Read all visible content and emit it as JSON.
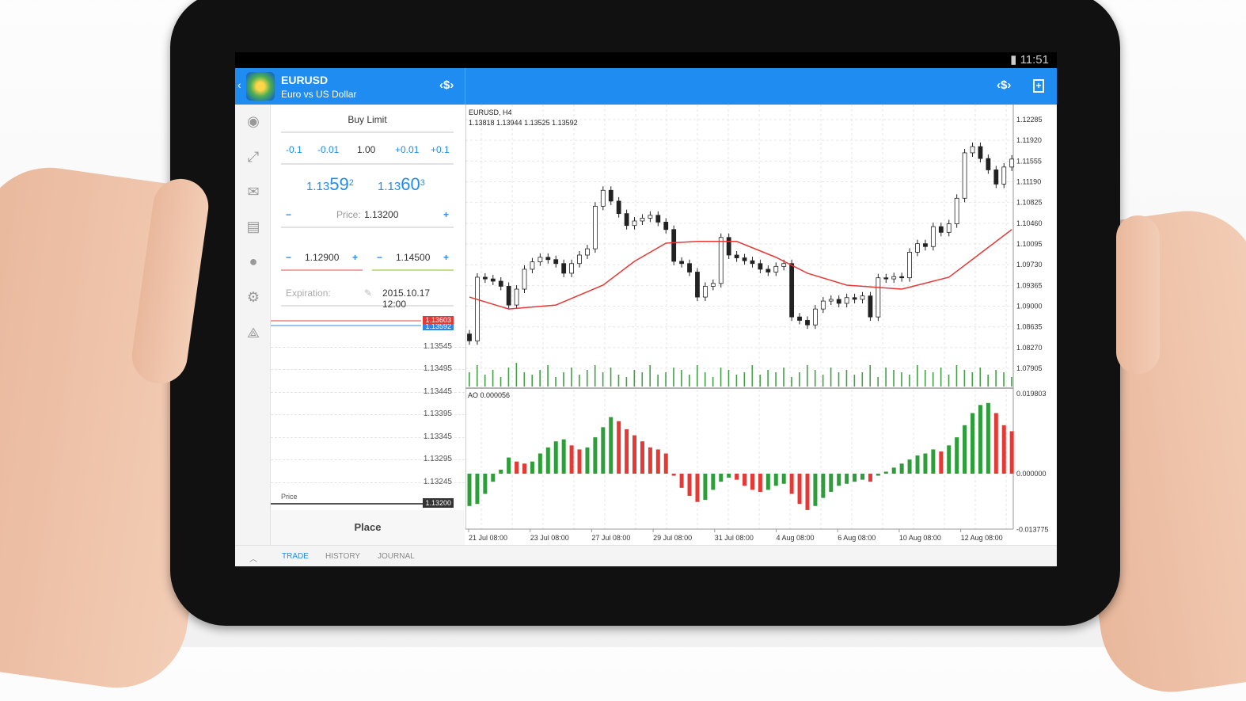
{
  "status_bar": {
    "time": "11:51",
    "battery_icon": "battery-icon"
  },
  "header": {
    "symbol": "EURUSD",
    "description": "Euro vs US Dollar",
    "back_icon": "chevron-left-icon",
    "accent": "#1e8cf0"
  },
  "sidebar": {
    "items": [
      "account-icon",
      "trade-icon",
      "mail-icon",
      "news-icon",
      "chat-icon",
      "settings-icon",
      "community-icon"
    ]
  },
  "order": {
    "type": "Buy Limit",
    "volume": {
      "steps": [
        "-0.1",
        "-0.01",
        "+0.01",
        "+0.1"
      ],
      "value": "1.00"
    },
    "bid": {
      "prefix": "1.13",
      "big": "59",
      "sup": "2"
    },
    "ask": {
      "prefix": "1.13",
      "big": "60",
      "sup": "3"
    },
    "price_label": "Price:",
    "price": "1.13200",
    "stop_loss": "1.12900",
    "take_profit": "1.14500",
    "expiration_label": "Expiration:",
    "expiration": "2015.10.17 12:00",
    "ladder": {
      "ask_tag": "1.13603",
      "bid_tag": "1.13592",
      "levels": [
        "1.13545",
        "1.13495",
        "1.13445",
        "1.13395",
        "1.13345",
        "1.13295",
        "1.13245"
      ],
      "price_label": "Price",
      "price_tag": "1.13200"
    },
    "place_label": "Place"
  },
  "tabs": [
    "TRADE",
    "HISTORY",
    "JOURNAL"
  ],
  "chart_data": [
    {
      "type": "candlestick",
      "title": "EURUSD, H4",
      "ohlc_readout": "1.13818 1.13944 1.13525 1.13592",
      "y_ticks": [
        "1.12285",
        "1.11920",
        "1.11555",
        "1.11190",
        "1.10825",
        "1.10460",
        "1.10095",
        "1.09730",
        "1.09365",
        "1.09000",
        "1.08635",
        "1.08270",
        "1.07905"
      ],
      "x_ticks": [
        "21 Jul 08:00",
        "23 Jul 08:00",
        "27 Jul 08:00",
        "29 Jul 08:00",
        "31 Jul 08:00",
        "4 Aug 08:00",
        "6 Aug 08:00",
        "10 Aug 08:00",
        "12 Aug 08:00"
      ],
      "ylim": [
        1.0775,
        1.1245
      ],
      "grid": true,
      "closes": [
        1.0839,
        1.0951,
        1.0948,
        1.0944,
        1.0935,
        1.0902,
        1.093,
        1.0965,
        1.0978,
        1.0986,
        1.0982,
        1.0975,
        1.0958,
        1.0975,
        1.099,
        1.1001,
        1.1076,
        1.1104,
        1.1085,
        1.1063,
        1.1042,
        1.105,
        1.1055,
        1.106,
        1.1048,
        1.1035,
        1.0979,
        1.0975,
        1.096,
        1.0916,
        1.0935,
        1.094,
        1.1021,
        1.099,
        1.0985,
        1.098,
        1.0975,
        1.0965,
        1.096,
        1.097,
        1.0975,
        1.0881,
        1.0875,
        1.0867,
        1.0895,
        1.0909,
        1.0912,
        1.0905,
        1.0915,
        1.0912,
        1.0918,
        1.0881,
        1.095,
        1.0948,
        1.0952,
        1.095,
        1.0995,
        1.101,
        1.1005,
        1.104,
        1.103,
        1.1045,
        1.109,
        1.117,
        1.1181,
        1.116,
        1.114,
        1.1115,
        1.1145,
        1.1159
      ],
      "moving_average": {
        "color": "#e53935",
        "points": [
          [
            0,
            1.0916
          ],
          [
            5,
            1.0895
          ],
          [
            11,
            1.0902
          ],
          [
            17,
            1.0937
          ],
          [
            21,
            1.0979
          ],
          [
            25,
            1.1011
          ],
          [
            29,
            1.1014
          ],
          [
            34,
            1.1014
          ],
          [
            39,
            1.0986
          ],
          [
            43,
            1.0958
          ],
          [
            48,
            1.0937
          ],
          [
            55,
            1.093
          ],
          [
            61,
            1.0951
          ],
          [
            65,
            1.0993
          ],
          [
            69,
            1.1035
          ]
        ]
      },
      "volume": [
        6,
        9,
        5,
        7,
        4,
        8,
        10,
        6,
        5,
        7,
        9,
        4,
        6,
        8,
        5,
        7,
        9,
        6,
        8,
        5,
        4,
        7,
        6,
        9,
        5,
        6,
        8,
        7,
        5,
        9,
        6,
        4,
        8,
        7,
        5,
        6,
        9,
        5,
        7,
        6,
        8,
        4,
        6,
        9,
        7,
        5,
        8,
        6,
        7,
        5,
        6,
        9,
        4,
        8,
        7,
        6,
        5,
        9,
        7,
        6,
        8,
        5,
        9,
        7,
        6,
        8,
        5,
        7,
        6,
        4
      ],
      "bull_color": "#222222",
      "volume_color": "#43a047"
    },
    {
      "type": "bar",
      "title": "AO 0.000056",
      "y_ticks": [
        "0.019803",
        "0.000000",
        "-0.013775"
      ],
      "ylim": [
        -0.013775,
        0.019803
      ],
      "values": [
        -0.008,
        -0.0075,
        -0.005,
        -0.002,
        0.001,
        0.004,
        0.003,
        0.0025,
        0.003,
        0.005,
        0.0065,
        0.008,
        0.0085,
        0.007,
        0.006,
        0.0065,
        0.009,
        0.0115,
        0.014,
        0.013,
        0.011,
        0.0095,
        0.008,
        0.0065,
        0.006,
        0.005,
        -0.0005,
        -0.0035,
        -0.0055,
        -0.007,
        -0.0065,
        -0.004,
        -0.002,
        -0.001,
        -0.0015,
        -0.003,
        -0.004,
        -0.0045,
        -0.004,
        -0.003,
        -0.0025,
        -0.005,
        -0.0075,
        -0.009,
        -0.008,
        -0.006,
        -0.0045,
        -0.003,
        -0.0025,
        -0.002,
        -0.0015,
        -0.002,
        -0.0005,
        0.0005,
        0.0015,
        0.0025,
        0.0035,
        0.0045,
        0.005,
        0.006,
        0.0055,
        0.007,
        0.009,
        0.012,
        0.015,
        0.017,
        0.0175,
        0.015,
        0.012,
        0.0105
      ],
      "up_color": "#2e9e3a",
      "down_color": "#e53935"
    }
  ]
}
